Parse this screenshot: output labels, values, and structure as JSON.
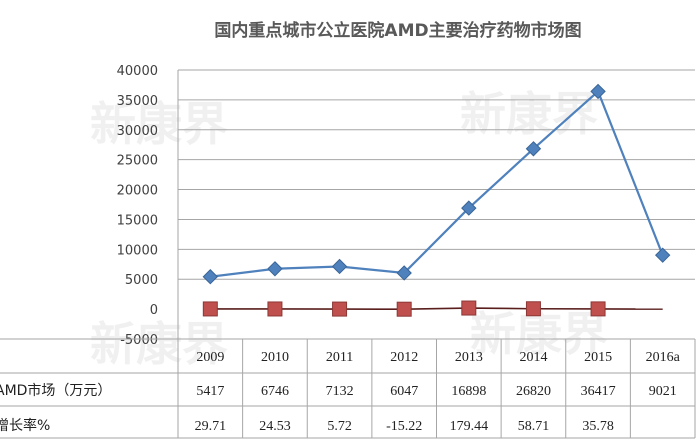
{
  "chart_data": {
    "type": "line",
    "title": "国内重点城市公立医院AMD主要治疗药物市场图",
    "categories": [
      "2009",
      "2010",
      "2011",
      "2012",
      "2013",
      "2014",
      "2015",
      "2016a"
    ],
    "yticks": [
      "40000",
      "35000",
      "30000",
      "25000",
      "20000",
      "15000",
      "10000",
      "5000",
      "0",
      "-5000"
    ],
    "ylim": [
      -5000,
      40000
    ],
    "grid": true,
    "series": [
      {
        "name": "AMD市场（万元）",
        "color": "#4F81BD",
        "marker": "diamond",
        "values": [
          5417,
          6746,
          7132,
          6047,
          16898,
          26820,
          36417,
          9021
        ],
        "labels": [
          "5417",
          "6746",
          "7132",
          "6047",
          "16898",
          "26820",
          "36417",
          "9021"
        ]
      },
      {
        "name": "增长率%",
        "color": "#C0504D",
        "marker": "square",
        "values": [
          29.71,
          24.53,
          5.72,
          -15.22,
          179.44,
          58.71,
          35.78,
          null
        ],
        "labels": [
          "29.71",
          "24.53",
          "5.72",
          "-15.22",
          "179.44",
          "58.71",
          "35.78",
          ""
        ]
      }
    ],
    "table_rows": [
      {
        "label": "AMD市场（万元）"
      },
      {
        "label": "增长率%"
      }
    ],
    "watermark": "新康界"
  }
}
